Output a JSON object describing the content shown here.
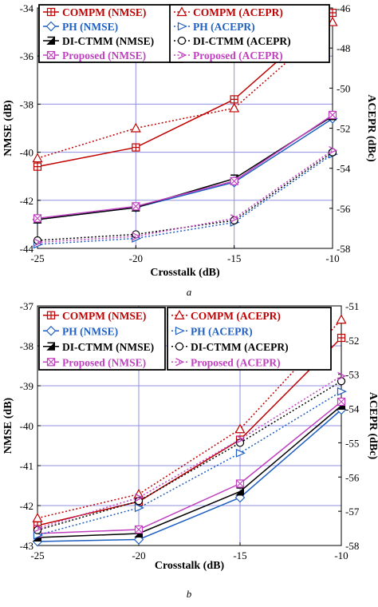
{
  "chart_data": [
    {
      "type": "line",
      "panel_label": "a",
      "x": [
        -25,
        -20,
        -15,
        -10
      ],
      "xlabel": "Crosstalk (dB)",
      "xlim": [
        -25,
        -10
      ],
      "xticks": [
        -25,
        -20,
        -15,
        -10
      ],
      "ylabel": "NMSE (dB)",
      "ylim": [
        -44,
        -34
      ],
      "yticks": [
        -44,
        -42,
        -40,
        -38,
        -36,
        -34
      ],
      "y2label": "ACEPR (dBc)",
      "y2lim": [
        -58,
        -46
      ],
      "y2ticks": [
        -58,
        -56,
        -54,
        -52,
        -50,
        -48,
        -46
      ],
      "grid": true,
      "legend_position": "top",
      "series": [
        {
          "name": "COMPM (NMSE)",
          "axis": "left",
          "color": "#c00000",
          "dash": "solid",
          "marker": "plus",
          "values": [
            -40.6,
            -39.8,
            -37.8,
            -34.2
          ]
        },
        {
          "name": "PH (NMSE)",
          "axis": "left",
          "color": "#1f5fc0",
          "dash": "solid",
          "marker": "diamond",
          "values": [
            -42.8,
            -42.3,
            -41.25,
            -38.6
          ]
        },
        {
          "name": "DI-CTMM (NMSE)",
          "axis": "left",
          "color": "#000000",
          "dash": "solid",
          "marker": "filled-triangle",
          "values": [
            -42.8,
            -42.3,
            -41.1,
            -38.5
          ]
        },
        {
          "name": "Proposed (NMSE)",
          "axis": "left",
          "color": "#c040c0",
          "dash": "solid",
          "marker": "boxx",
          "values": [
            -42.75,
            -42.25,
            -41.2,
            -38.45
          ]
        },
        {
          "name": "COMPM (ACEPR)",
          "axis": "right",
          "color": "#c00000",
          "dash": "dotted",
          "marker": "triangle",
          "values": [
            -53.5,
            -52.0,
            -51.0,
            -46.7
          ]
        },
        {
          "name": "PH (ACEPR)",
          "axis": "right",
          "color": "#1f5fc0",
          "dash": "dotted",
          "marker": "open-triangle-right",
          "values": [
            -57.8,
            -57.5,
            -56.7,
            -53.3
          ]
        },
        {
          "name": "DI-CTMM (ACEPR)",
          "axis": "right",
          "color": "#000000",
          "dash": "dotted",
          "marker": "circle",
          "values": [
            -57.6,
            -57.3,
            -56.6,
            -53.2
          ]
        },
        {
          "name": "Proposed (ACEPR)",
          "axis": "right",
          "color": "#c040c0",
          "dash": "dotted",
          "marker": "caret",
          "values": [
            -57.7,
            -57.4,
            -56.5,
            -53.1
          ]
        }
      ]
    },
    {
      "type": "line",
      "panel_label": "b",
      "x": [
        -25,
        -20,
        -15,
        -10
      ],
      "xlabel": "Crosstalk (dB)",
      "xlim": [
        -25,
        -10
      ],
      "xticks": [
        -25,
        -20,
        -15,
        -10
      ],
      "ylabel": "NMSE (dB)",
      "ylim": [
        -43,
        -37
      ],
      "yticks": [
        -43,
        -42,
        -41,
        -40,
        -39,
        -38,
        -37
      ],
      "y2label": "ACEPR (dBc)",
      "y2lim": [
        -58,
        -51
      ],
      "y2ticks": [
        -58,
        -57,
        -56,
        -55,
        -54,
        -53,
        -52,
        -51
      ],
      "grid": true,
      "legend_position": "top",
      "series": [
        {
          "name": "COMPM (NMSE)",
          "axis": "left",
          "color": "#c00000",
          "dash": "solid",
          "marker": "plus",
          "values": [
            -42.5,
            -41.9,
            -40.35,
            -37.8
          ]
        },
        {
          "name": "PH (NMSE)",
          "axis": "left",
          "color": "#1f5fc0",
          "dash": "solid",
          "marker": "diamond",
          "values": [
            -42.9,
            -42.85,
            -41.8,
            -39.6
          ]
        },
        {
          "name": "DI-CTMM (NMSE)",
          "axis": "left",
          "color": "#000000",
          "dash": "solid",
          "marker": "filled-triangle",
          "values": [
            -42.8,
            -42.7,
            -41.65,
            -39.5
          ]
        },
        {
          "name": "Proposed (NMSE)",
          "axis": "left",
          "color": "#c040c0",
          "dash": "solid",
          "marker": "boxx",
          "values": [
            -42.7,
            -42.6,
            -41.45,
            -39.4
          ]
        },
        {
          "name": "COMPM (ACEPR)",
          "axis": "right",
          "color": "#c00000",
          "dash": "dotted",
          "marker": "triangle",
          "values": [
            -57.2,
            -56.5,
            -54.6,
            -51.4
          ]
        },
        {
          "name": "PH (ACEPR)",
          "axis": "right",
          "color": "#1f5fc0",
          "dash": "dotted",
          "marker": "open-triangle-right",
          "values": [
            -57.7,
            -56.9,
            -55.3,
            -53.5
          ]
        },
        {
          "name": "DI-CTMM (ACEPR)",
          "axis": "right",
          "color": "#000000",
          "dash": "dotted",
          "marker": "circle",
          "values": [
            -57.55,
            -56.7,
            -55.0,
            -53.2
          ]
        },
        {
          "name": "Proposed (ACEPR)",
          "axis": "right",
          "color": "#c040c0",
          "dash": "dotted",
          "marker": "caret",
          "values": [
            -57.5,
            -56.6,
            -54.9,
            -53.05
          ]
        }
      ]
    }
  ]
}
